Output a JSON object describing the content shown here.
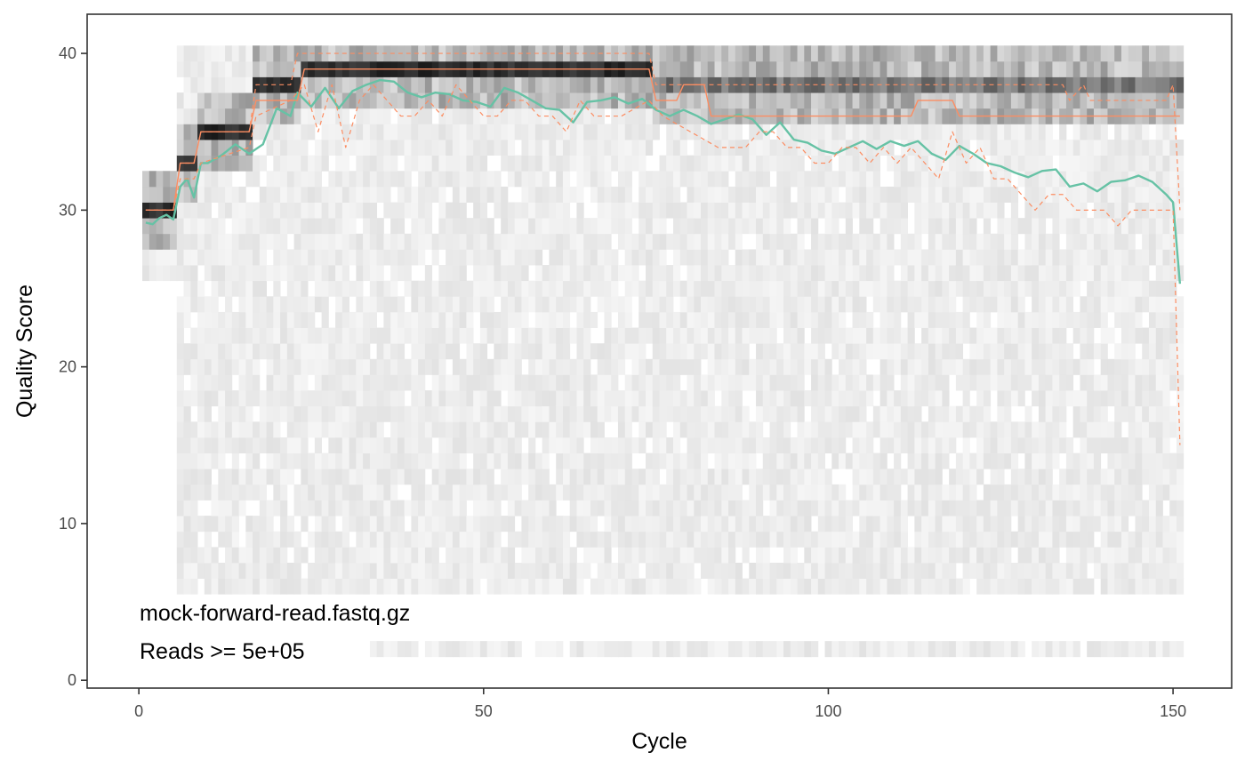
{
  "chart_data": {
    "type": "heatmap",
    "title": "",
    "xlabel": "Cycle",
    "ylabel": "Quality Score",
    "xlim": [
      -7.5,
      158.5
    ],
    "ylim": [
      -0.5,
      42.5
    ],
    "x_ticks": [
      0,
      50,
      100,
      150
    ],
    "y_ticks": [
      0,
      10,
      20,
      30,
      40
    ],
    "grid": false,
    "legend": "none",
    "annotations": [
      "mock-forward-read.fastq.gz",
      "Reads >=  5e+05"
    ],
    "colors": {
      "mean": "#66c2a5",
      "median": "#fc8d62",
      "quartiles": "#fc8d62",
      "heat_low": "#f2f2f2",
      "heat_high": "#000000"
    },
    "heatmap_dominant_quality": [
      {
        "cycles": [
          1,
          5
        ],
        "q": 30
      },
      {
        "cycles": [
          6,
          8
        ],
        "q": 33
      },
      {
        "cycles": [
          9,
          16
        ],
        "q": 35
      },
      {
        "cycles": [
          17,
          23
        ],
        "q": 38
      },
      {
        "cycles": [
          24,
          74
        ],
        "q": 39
      },
      {
        "cycles": [
          75,
          151
        ],
        "q": 38
      }
    ],
    "series": [
      {
        "name": "mean",
        "x": [
          1,
          2,
          3,
          4,
          5,
          6,
          7,
          8,
          9,
          10,
          12,
          14,
          16,
          18,
          20,
          22,
          23,
          25,
          27,
          29,
          31,
          33,
          35,
          37,
          39,
          41,
          43,
          45,
          47,
          49,
          51,
          53,
          55,
          57,
          59,
          61,
          63,
          65,
          67,
          69,
          71,
          73,
          75,
          77,
          79,
          81,
          83,
          85,
          87,
          89,
          91,
          93,
          95,
          97,
          99,
          101,
          103,
          105,
          107,
          109,
          111,
          113,
          115,
          117,
          119,
          121,
          123,
          125,
          127,
          129,
          131,
          133,
          135,
          137,
          139,
          141,
          143,
          145,
          147,
          149,
          150,
          151
        ],
        "values": [
          29.2,
          29.1,
          29.5,
          29.7,
          29.4,
          31.5,
          32.0,
          30.8,
          33.0,
          33.0,
          33.5,
          34.2,
          33.6,
          34.2,
          36.5,
          36.0,
          37.5,
          36.6,
          37.8,
          36.5,
          37.6,
          38.0,
          38.3,
          38.2,
          37.5,
          37.2,
          37.5,
          37.4,
          37.0,
          36.9,
          36.6,
          37.8,
          37.5,
          37.0,
          36.5,
          36.4,
          35.6,
          36.9,
          37.0,
          37.2,
          36.8,
          37.1,
          36.4,
          36.0,
          36.4,
          36.0,
          35.5,
          35.8,
          36.1,
          35.8,
          34.8,
          35.6,
          34.5,
          34.3,
          33.8,
          33.6,
          34.0,
          34.4,
          33.9,
          34.4,
          34.1,
          34.4,
          33.6,
          33.2,
          34.1,
          33.6,
          33.0,
          32.8,
          32.4,
          32.1,
          32.5,
          32.6,
          31.5,
          31.7,
          31.2,
          31.8,
          31.9,
          32.2,
          31.8,
          31.0,
          30.5,
          25.3
        ]
      },
      {
        "name": "median",
        "x": [
          1,
          5,
          6,
          8,
          9,
          16,
          17,
          23,
          24,
          74,
          75,
          78,
          79,
          82,
          83,
          112,
          113,
          118,
          119,
          123,
          124,
          151
        ],
        "values": [
          30,
          30,
          33,
          33,
          35,
          35,
          37,
          37,
          39,
          39,
          37,
          37,
          38,
          38,
          36,
          36,
          37,
          37,
          36,
          36,
          36,
          36
        ]
      },
      {
        "name": "q25",
        "x": [
          1,
          5,
          6,
          8,
          9,
          16,
          17,
          22,
          24,
          26,
          28,
          30,
          32,
          34,
          36,
          38,
          40,
          42,
          44,
          46,
          48,
          50,
          52,
          54,
          56,
          58,
          60,
          62,
          64,
          66,
          70,
          74,
          76,
          80,
          84,
          88,
          90,
          92,
          94,
          96,
          98,
          100,
          102,
          104,
          106,
          108,
          110,
          112,
          114,
          116,
          118,
          120,
          122,
          124,
          126,
          128,
          130,
          132,
          134,
          136,
          138,
          140,
          142,
          144,
          146,
          148,
          150,
          151
        ],
        "values": [
          30,
          30,
          32,
          32,
          33,
          34,
          36,
          37,
          38,
          35,
          38,
          34,
          37,
          38,
          37,
          36,
          36,
          37,
          36,
          38,
          37,
          36,
          36,
          37,
          37,
          36,
          36,
          35,
          37,
          36,
          36,
          37,
          36,
          35,
          34,
          34,
          35,
          35,
          34,
          34,
          33,
          33,
          34,
          34,
          33,
          34,
          33,
          34,
          33,
          32,
          35,
          33,
          34,
          32,
          32,
          31,
          30,
          31,
          31,
          30,
          30,
          30,
          29,
          30,
          30,
          30,
          30,
          15
        ]
      },
      {
        "name": "q75",
        "x": [
          1,
          5,
          6,
          8,
          9,
          16,
          17,
          21,
          22,
          23,
          24,
          74,
          75,
          80,
          81,
          134,
          135,
          137,
          138,
          149,
          150,
          151
        ],
        "values": [
          30,
          30,
          33,
          33,
          35,
          35,
          38,
          38,
          38,
          40,
          40,
          40,
          38,
          38,
          38,
          38,
          37,
          38,
          37,
          37,
          38,
          30
        ]
      }
    ]
  }
}
